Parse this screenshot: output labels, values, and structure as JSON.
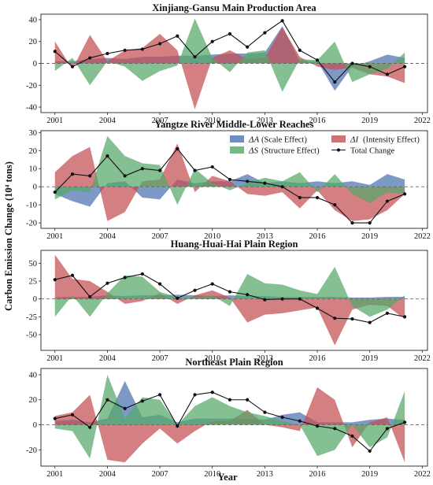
{
  "figure": {
    "ylabel": "Carbon Emission Change (10⁴ tons)",
    "xlabel": "Year"
  },
  "colors": {
    "scale": "#4C72B0",
    "intensity": "#C44E52",
    "structure": "#55A868",
    "total": "#111111",
    "zero_line": "#666666"
  },
  "legend": {
    "entries": [
      {
        "key": "scale",
        "symbol": "ΔA",
        "text": "(Scale Effect)",
        "kind": "fill"
      },
      {
        "key": "intensity",
        "symbol": "ΔI",
        "text": "(Intensity Effect)",
        "kind": "fill"
      },
      {
        "key": "structure",
        "symbol": "ΔS",
        "text": "(Structure Effect)",
        "kind": "fill"
      },
      {
        "key": "total",
        "symbol": "",
        "text": "Total Change",
        "kind": "line"
      }
    ]
  },
  "chart_data": [
    {
      "type": "area",
      "title": "Xinjiang-Gansu Main Production Area",
      "x": [
        2001,
        2002,
        2003,
        2004,
        2005,
        2006,
        2007,
        2008,
        2009,
        2010,
        2011,
        2012,
        2013,
        2014,
        2015,
        2016,
        2017,
        2018,
        2019,
        2020,
        2021
      ],
      "xticks": [
        2001,
        2004,
        2007,
        2010,
        2013,
        2016,
        2019,
        2022
      ],
      "xlim": [
        2000.2,
        2022.3
      ],
      "ylim": [
        -45,
        45
      ],
      "yticks": [
        -40,
        -20,
        0,
        20,
        40
      ],
      "series": [
        {
          "key": "scale",
          "values": [
            2,
            2,
            4,
            5,
            4,
            6,
            6,
            7,
            7,
            8,
            9,
            9,
            10,
            34,
            2,
            2,
            -25,
            -3,
            2,
            8,
            5
          ]
        },
        {
          "key": "intensity",
          "values": [
            20,
            -5,
            26,
            2,
            12,
            14,
            27,
            12,
            -42,
            5,
            12,
            4,
            5,
            33,
            6,
            -3,
            -6,
            -4,
            -10,
            -12,
            -18
          ]
        },
        {
          "key": "structure",
          "values": [
            -7,
            5,
            -20,
            2,
            -3,
            -16,
            -7,
            -2,
            41,
            5,
            -8,
            10,
            12,
            -26,
            4,
            3,
            20,
            -17,
            -10,
            -5,
            10
          ]
        },
        {
          "key": "total",
          "values": [
            11,
            -3,
            5,
            9,
            12,
            13,
            18,
            25,
            6,
            20,
            27,
            15,
            28,
            39,
            12,
            3,
            -17,
            0,
            -3,
            -10,
            -3
          ]
        }
      ]
    },
    {
      "type": "area",
      "title": "Yangtze River Middle-Lower Reaches",
      "x": [
        2001,
        2002,
        2003,
        2004,
        2005,
        2006,
        2007,
        2008,
        2009,
        2010,
        2011,
        2012,
        2013,
        2014,
        2015,
        2016,
        2017,
        2018,
        2019,
        2020,
        2021
      ],
      "xticks": [
        2001,
        2004,
        2007,
        2010,
        2013,
        2016,
        2019,
        2022
      ],
      "xlim": [
        2000.2,
        2022.3
      ],
      "ylim": [
        -23,
        31
      ],
      "yticks": [
        -20,
        -10,
        0,
        10,
        20,
        30
      ],
      "series": [
        {
          "key": "scale",
          "values": [
            -4,
            -8,
            -11,
            2,
            3,
            -6,
            -7,
            4,
            2,
            3,
            3,
            7,
            2,
            3,
            2,
            3,
            2,
            3,
            1,
            7,
            4
          ]
        },
        {
          "key": "intensity",
          "values": [
            8,
            17,
            22,
            -19,
            -14,
            3,
            4,
            24,
            -3,
            6,
            3,
            -4,
            -5,
            -3,
            -12,
            -2,
            -13,
            -19,
            -18,
            -13,
            -4
          ]
        },
        {
          "key": "structure",
          "values": [
            -7,
            -2,
            -3,
            28,
            17,
            13,
            12,
            -10,
            10,
            2,
            -2,
            2,
            5,
            3,
            8,
            -3,
            7,
            -4,
            -9,
            -3,
            -4
          ]
        },
        {
          "key": "total",
          "values": [
            -3,
            7,
            6,
            17,
            6,
            10,
            9,
            21,
            9,
            11,
            4,
            3,
            2,
            0,
            -6,
            -6,
            -10,
            -20,
            -20,
            -8,
            -4
          ]
        }
      ]
    },
    {
      "type": "area",
      "title": "Huang-Huai-Hai Plain Region",
      "x": [
        2001,
        2002,
        2003,
        2004,
        2005,
        2006,
        2007,
        2008,
        2009,
        2010,
        2011,
        2012,
        2013,
        2014,
        2015,
        2016,
        2017,
        2018,
        2019,
        2020,
        2021
      ],
      "xticks": [
        2001,
        2004,
        2007,
        2010,
        2013,
        2016,
        2019,
        2022
      ],
      "xlim": [
        2000.2,
        2022.3
      ],
      "ylim": [
        -72,
        68
      ],
      "yticks": [
        -50,
        -25,
        0,
        25,
        50
      ],
      "series": [
        {
          "key": "scale",
          "values": [
            2,
            3,
            3,
            5,
            4,
            5,
            5,
            6,
            5,
            4,
            5,
            4,
            4,
            3,
            3,
            3,
            3,
            2,
            2,
            3,
            3
          ]
        },
        {
          "key": "intensity",
          "values": [
            62,
            28,
            25,
            10,
            -7,
            -3,
            8,
            -7,
            5,
            12,
            2,
            -33,
            -22,
            -20,
            -16,
            -12,
            -65,
            -15,
            -8,
            -10,
            -28
          ]
        },
        {
          "key": "structure",
          "values": [
            -25,
            5,
            -25,
            8,
            33,
            31,
            10,
            2,
            2,
            5,
            -10,
            35,
            22,
            20,
            12,
            7,
            45,
            -10,
            -25,
            -15,
            5
          ]
        },
        {
          "key": "total",
          "values": [
            27,
            33,
            3,
            22,
            30,
            35,
            21,
            1,
            12,
            21,
            10,
            6,
            -1,
            0,
            0,
            -13,
            -27,
            -28,
            -33,
            -20,
            -25
          ]
        }
      ]
    },
    {
      "type": "area",
      "title": "Northeast Plain Region",
      "x": [
        2001,
        2002,
        2003,
        2004,
        2005,
        2006,
        2007,
        2008,
        2009,
        2010,
        2011,
        2012,
        2013,
        2014,
        2015,
        2016,
        2017,
        2018,
        2019,
        2020,
        2021
      ],
      "xticks": [
        2001,
        2004,
        2007,
        2010,
        2013,
        2016,
        2019,
        2022
      ],
      "xlim": [
        2000.2,
        2022.3
      ],
      "ylim": [
        -33,
        45
      ],
      "yticks": [
        -20,
        0,
        20,
        40
      ],
      "series": [
        {
          "key": "scale",
          "values": [
            3,
            4,
            2,
            5,
            35,
            6,
            8,
            2,
            5,
            5,
            5,
            5,
            4,
            8,
            10,
            2,
            2,
            2,
            4,
            5,
            4
          ]
        },
        {
          "key": "intensity",
          "values": [
            7,
            10,
            24,
            -28,
            -30,
            -15,
            -3,
            -15,
            -5,
            3,
            3,
            12,
            0,
            -2,
            -5,
            30,
            20,
            -18,
            2,
            6,
            -30
          ]
        },
        {
          "key": "structure",
          "values": [
            -3,
            -5,
            -27,
            40,
            5,
            22,
            20,
            0,
            15,
            22,
            15,
            10,
            7,
            3,
            0,
            -25,
            -20,
            0,
            -18,
            -10,
            27
          ]
        },
        {
          "key": "total",
          "values": [
            5,
            8,
            -2,
            20,
            13,
            19,
            24,
            -1,
            24,
            26,
            20,
            20,
            10,
            6,
            3,
            -1,
            -3,
            -9,
            -21,
            -3,
            2
          ]
        }
      ]
    }
  ]
}
